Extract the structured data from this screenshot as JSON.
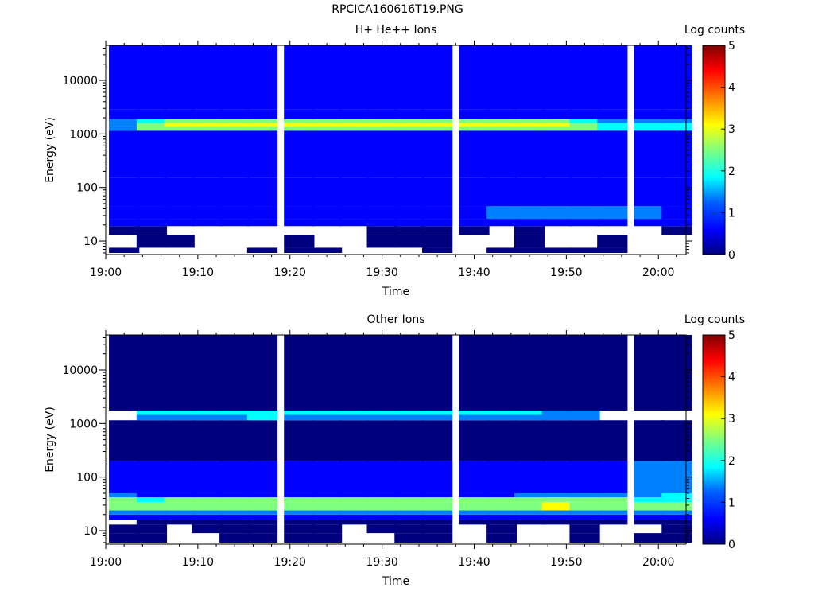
{
  "figure": {
    "title": "RPCICA160616T19.PNG"
  },
  "colormap": [
    "#00007f",
    "#0000ff",
    "#007fff",
    "#00ffff",
    "#7fff7f",
    "#ffff00",
    "#ff7f00",
    "#ff0000",
    "#7f0000"
  ],
  "chart_data": [
    {
      "type": "heatmap",
      "title": "H+ He++ Ions",
      "xlabel": "Time",
      "ylabel": "Energy (eV)",
      "xticks": [
        "19:00",
        "19:10",
        "19:20",
        "19:30",
        "19:40",
        "19:50",
        "20:00"
      ],
      "yticks": [
        "10",
        "100",
        "1000",
        "10000"
      ],
      "yscale": "log",
      "ylim": [
        5.6,
        45000
      ],
      "colorbar": {
        "label": "Log counts",
        "ticks": [
          "0",
          "1",
          "2",
          "3",
          "4",
          "5"
        ],
        "range": [
          0,
          5
        ]
      },
      "x_times": [
        "19:02",
        "19:05",
        "19:08",
        "19:11",
        "19:14",
        "19:17",
        "19:21",
        "19:24",
        "19:27",
        "19:30",
        "19:33",
        "19:36",
        "19:40",
        "19:43",
        "19:46",
        "19:49",
        "19:52",
        "19:55",
        "19:59",
        "20:02"
      ],
      "energy_bands": [
        {
          "e_low": 6,
          "e_high": 7.5,
          "values": [
            0.3,
            null,
            null,
            null,
            null,
            0.3,
            0.3,
            0.3,
            null,
            null,
            null,
            0.3,
            null,
            0.3,
            0.3,
            0.3,
            0.3,
            0.3,
            null,
            null
          ]
        },
        {
          "e_low": 7.5,
          "e_high": 13,
          "values": [
            null,
            0.3,
            0.3,
            null,
            null,
            null,
            0.3,
            null,
            null,
            0.3,
            0.3,
            0.3,
            null,
            null,
            0.3,
            null,
            null,
            0.3,
            null,
            null
          ]
        },
        {
          "e_low": 13,
          "e_high": 19,
          "values": [
            0.3,
            0.3,
            null,
            null,
            null,
            null,
            null,
            null,
            null,
            0.3,
            0.3,
            0.3,
            0.3,
            null,
            0.3,
            null,
            null,
            null,
            null,
            0.3
          ]
        },
        {
          "e_low": 19,
          "e_high": 26,
          "values": [
            0.4,
            0.4,
            0.4,
            0.4,
            0.5,
            0.4,
            0.4,
            0.4,
            0.4,
            0.4,
            0.5,
            0.4,
            0.4,
            0.4,
            0.4,
            0.4,
            0.4,
            0.4,
            0.4,
            0.4
          ]
        },
        {
          "e_low": 26,
          "e_high": 45,
          "values": [
            0.8,
            0.9,
            0.8,
            0.9,
            0.9,
            0.8,
            0.9,
            0.8,
            0.9,
            0.8,
            0.9,
            0.8,
            0.9,
            1.0,
            1.1,
            1.2,
            1.1,
            1.0,
            1.1,
            0.9
          ]
        },
        {
          "e_low": 45,
          "e_high": 150,
          "values": [
            0.4,
            0.5,
            0.4,
            0.5,
            0.4,
            0.5,
            0.4,
            0.5,
            0.4,
            0.5,
            0.4,
            0.5,
            0.4,
            0.5,
            0.4,
            0.5,
            0.4,
            0.5,
            0.4,
            0.5
          ]
        },
        {
          "e_low": 150,
          "e_high": 1150,
          "values": [
            0.5,
            0.6,
            0.5,
            0.6,
            0.5,
            0.6,
            0.5,
            0.6,
            0.5,
            0.6,
            0.5,
            0.6,
            0.5,
            0.6,
            0.5,
            0.6,
            0.5,
            0.6,
            0.5,
            0.6
          ]
        },
        {
          "e_low": 1150,
          "e_high": 1350,
          "values": [
            1.2,
            2.2,
            2.5,
            2.6,
            2.7,
            2.8,
            2.8,
            2.8,
            2.7,
            2.6,
            2.7,
            2.6,
            2.8,
            2.7,
            2.7,
            2.6,
            2.4,
            1.8,
            1.6,
            1.9
          ]
        },
        {
          "e_low": 1350,
          "e_high": 1600,
          "values": [
            1.4,
            2.6,
            2.9,
            2.9,
            3.0,
            3.1,
            3.1,
            3.0,
            3.0,
            2.9,
            3.0,
            2.9,
            3.0,
            3.0,
            2.9,
            2.9,
            2.8,
            2.0,
            1.8,
            2.0
          ]
        },
        {
          "e_low": 1600,
          "e_high": 1900,
          "values": [
            1.0,
            1.9,
            2.2,
            2.3,
            2.3,
            2.4,
            2.4,
            2.3,
            2.3,
            2.2,
            2.3,
            2.2,
            2.3,
            2.3,
            2.2,
            2.2,
            2.0,
            1.4,
            1.3,
            1.5
          ]
        },
        {
          "e_low": 1900,
          "e_high": 2900,
          "values": [
            0.6,
            0.8,
            0.8,
            0.8,
            0.9,
            0.9,
            0.8,
            0.8,
            0.8,
            0.8,
            0.8,
            0.8,
            0.9,
            0.8,
            0.8,
            0.8,
            0.8,
            0.7,
            0.7,
            0.7
          ]
        },
        {
          "e_low": 2900,
          "e_high": 45000,
          "values": [
            0.5,
            0.6,
            0.5,
            0.6,
            0.5,
            0.6,
            0.5,
            0.6,
            0.5,
            0.6,
            0.5,
            0.6,
            0.5,
            0.6,
            0.5,
            0.6,
            0.5,
            0.6,
            0.5,
            0.6
          ]
        }
      ]
    },
    {
      "type": "heatmap",
      "title": "Other Ions",
      "xlabel": "Time",
      "ylabel": "Energy (eV)",
      "xticks": [
        "19:00",
        "19:10",
        "19:20",
        "19:30",
        "19:40",
        "19:50",
        "20:00"
      ],
      "yticks": [
        "10",
        "100",
        "1000",
        "10000"
      ],
      "yscale": "log",
      "ylim": [
        5.6,
        45000
      ],
      "colorbar": {
        "label": "Log counts",
        "ticks": [
          "0",
          "1",
          "2",
          "3",
          "4",
          "5"
        ],
        "range": [
          0,
          5
        ]
      },
      "x_times": [
        "19:02",
        "19:05",
        "19:08",
        "19:11",
        "19:14",
        "19:17",
        "19:21",
        "19:24",
        "19:27",
        "19:30",
        "19:33",
        "19:36",
        "19:40",
        "19:43",
        "19:46",
        "19:49",
        "19:52",
        "19:55",
        "19:59",
        "20:02"
      ],
      "energy_bands": [
        {
          "e_low": 6,
          "e_high": 9,
          "values": [
            0.3,
            0.3,
            null,
            null,
            0.3,
            0.3,
            0.3,
            0.3,
            null,
            null,
            0.3,
            0.3,
            null,
            0.3,
            null,
            null,
            0.3,
            null,
            0.3,
            0.3
          ]
        },
        {
          "e_low": 9,
          "e_high": 13,
          "values": [
            0.3,
            0.3,
            null,
            0.3,
            0.3,
            0.3,
            0.3,
            0.3,
            null,
            0.3,
            0.3,
            0.3,
            null,
            0.3,
            null,
            null,
            0.3,
            null,
            null,
            0.3
          ]
        },
        {
          "e_low": 13,
          "e_high": 16,
          "values": [
            null,
            0.3,
            0.3,
            0.3,
            0.3,
            0.3,
            0.3,
            0.3,
            0.3,
            0.3,
            0.3,
            0.3,
            0.3,
            0.3,
            0.3,
            0.3,
            0.3,
            0.3,
            0.3,
            0.3
          ]
        },
        {
          "e_low": 16,
          "e_high": 20,
          "values": [
            0.6,
            0.6,
            0.6,
            0.6,
            0.6,
            0.6,
            0.6,
            0.6,
            0.6,
            0.6,
            0.6,
            0.6,
            0.6,
            0.6,
            0.6,
            0.6,
            0.6,
            0.6,
            0.6,
            0.6
          ]
        },
        {
          "e_low": 20,
          "e_high": 24,
          "values": [
            1.5,
            1.0,
            1.0,
            1.0,
            1.0,
            1.0,
            1.0,
            1.0,
            1.0,
            1.0,
            1.0,
            1.0,
            1.0,
            1.0,
            1.0,
            1.0,
            1.0,
            1.2,
            1.4,
            1.3
          ]
        },
        {
          "e_low": 24,
          "e_high": 34,
          "values": [
            2.6,
            2.4,
            2.6,
            2.5,
            2.7,
            2.6,
            2.5,
            2.6,
            2.5,
            2.6,
            2.5,
            2.6,
            2.6,
            2.7,
            2.8,
            2.9,
            2.8,
            2.7,
            2.3,
            2.2
          ]
        },
        {
          "e_low": 34,
          "e_high": 42,
          "values": [
            2.2,
            2.0,
            2.2,
            2.2,
            2.3,
            2.2,
            2.2,
            2.3,
            2.2,
            2.2,
            2.2,
            2.3,
            2.2,
            2.3,
            2.4,
            2.5,
            2.4,
            2.3,
            2.0,
            1.9
          ]
        },
        {
          "e_low": 42,
          "e_high": 50,
          "values": [
            1.0,
            0.8,
            0.9,
            0.8,
            0.9,
            0.8,
            0.8,
            0.9,
            0.8,
            0.8,
            0.8,
            0.9,
            0.8,
            0.9,
            1.0,
            1.0,
            1.0,
            1.0,
            1.5,
            1.6
          ]
        },
        {
          "e_low": 50,
          "e_high": 200,
          "values": [
            0.5,
            0.4,
            0.5,
            0.4,
            0.5,
            0.5,
            0.5,
            0.5,
            0.4,
            0.5,
            0.5,
            0.5,
            0.5,
            0.6,
            0.6,
            0.7,
            0.8,
            0.9,
            1.0,
            1.1
          ]
        },
        {
          "e_low": 200,
          "e_high": 1150,
          "values": [
            0.3,
            0.3,
            0.3,
            0.3,
            0.3,
            0.3,
            0.3,
            0.3,
            0.3,
            0.3,
            0.3,
            0.3,
            0.3,
            0.3,
            0.3,
            0.3,
            0.3,
            0.3,
            0.3,
            0.3
          ]
        },
        {
          "e_low": 1150,
          "e_high": 1450,
          "values": [
            null,
            1.3,
            1.4,
            1.5,
            1.5,
            1.6,
            1.5,
            1.5,
            1.4,
            1.4,
            1.5,
            1.4,
            1.4,
            1.3,
            1.4,
            1.3,
            1.2,
            null,
            null,
            null
          ]
        },
        {
          "e_low": 1450,
          "e_high": 1750,
          "values": [
            null,
            1.6,
            1.7,
            1.8,
            1.8,
            1.8,
            1.8,
            1.7,
            1.7,
            1.7,
            1.8,
            1.7,
            1.7,
            1.6,
            1.6,
            1.5,
            1.4,
            null,
            null,
            null
          ]
        },
        {
          "e_low": 1750,
          "e_high": 45000,
          "values": [
            0.3,
            0.3,
            0.3,
            0.3,
            0.3,
            0.3,
            0.3,
            0.3,
            0.3,
            0.3,
            0.3,
            0.3,
            0.3,
            0.3,
            0.3,
            0.3,
            0.3,
            0.3,
            0.3,
            0.3
          ]
        }
      ]
    }
  ]
}
